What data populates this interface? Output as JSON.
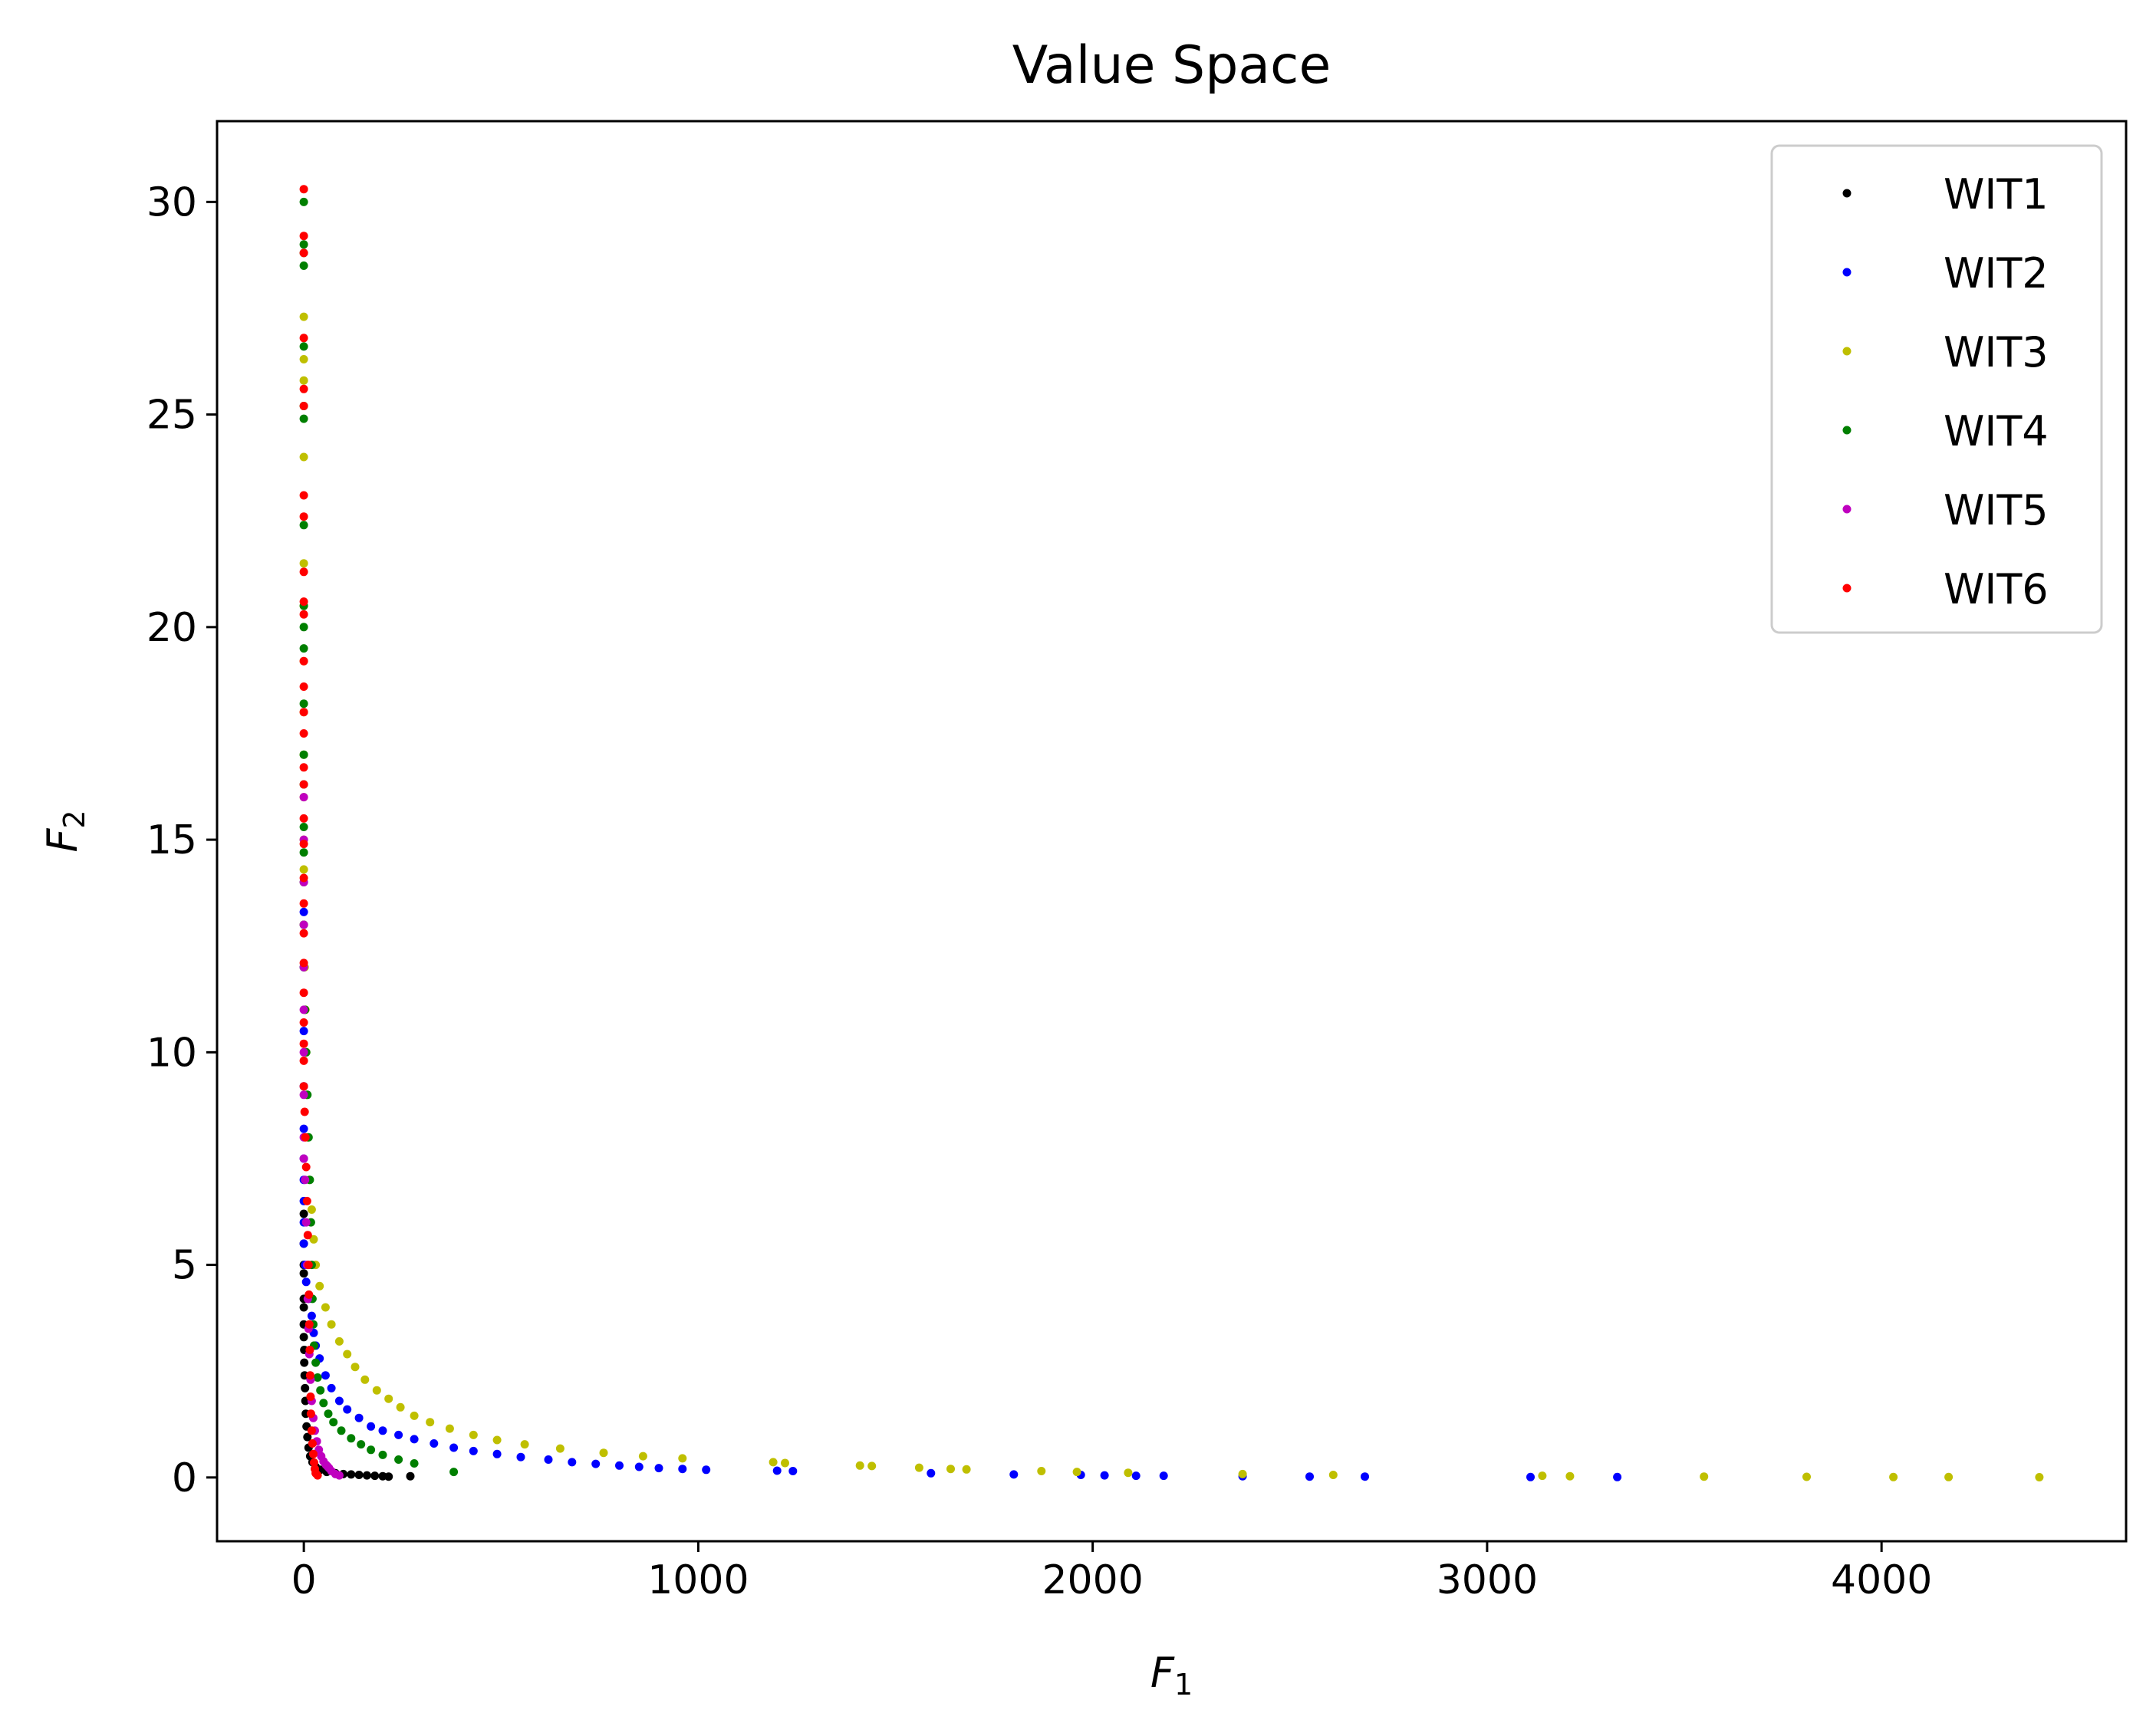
{
  "chart_data": {
    "type": "scatter",
    "title": "Value Space",
    "xlabel": {
      "symbol": "F",
      "subscript": "1"
    },
    "ylabel": {
      "symbol": "F",
      "subscript": "2"
    },
    "xlim": [
      -220,
      4620
    ],
    "ylim": [
      -1.5,
      31.9
    ],
    "x_ticks": [
      0,
      1000,
      2000,
      3000,
      4000
    ],
    "y_ticks": [
      0,
      5,
      10,
      15,
      20,
      25,
      30
    ],
    "grid": false,
    "legend_position": "top-right",
    "series": [
      {
        "name": "WIT1",
        "color": "#000000",
        "points": [
          [
            0,
            6.2
          ],
          [
            0,
            5.5
          ],
          [
            0,
            5
          ],
          [
            0,
            4.8
          ],
          [
            0,
            4.2
          ],
          [
            0,
            4
          ],
          [
            0,
            3.6
          ],
          [
            0,
            3.3
          ],
          [
            1,
            3
          ],
          [
            1,
            2.7
          ],
          [
            2,
            2.4
          ],
          [
            3,
            2.1
          ],
          [
            4,
            1.8
          ],
          [
            5,
            1.5
          ],
          [
            7,
            1.2
          ],
          [
            9,
            0.95
          ],
          [
            12,
            0.7
          ],
          [
            16,
            0.5
          ],
          [
            22,
            0.36
          ],
          [
            30,
            0.25
          ],
          [
            42,
            0.18
          ],
          [
            58,
            0.13
          ],
          [
            80,
            0.1
          ],
          [
            100,
            0.08
          ],
          [
            120,
            0.07
          ],
          [
            140,
            0.06
          ],
          [
            160,
            0.05
          ],
          [
            180,
            0.04
          ],
          [
            200,
            0.03
          ],
          [
            215,
            0.02
          ],
          [
            270,
            0.03
          ]
        ]
      },
      {
        "name": "WIT2",
        "color": "#0000ff",
        "points": [
          [
            0,
            13.3
          ],
          [
            0,
            12
          ],
          [
            0,
            10.5
          ],
          [
            0,
            9.2
          ],
          [
            0,
            8.2
          ],
          [
            0,
            7.5
          ],
          [
            0,
            7
          ],
          [
            0,
            6.5
          ],
          [
            0,
            6
          ],
          [
            0,
            5.5
          ],
          [
            3,
            5
          ],
          [
            6,
            4.6
          ],
          [
            12,
            4.2
          ],
          [
            20,
            3.8
          ],
          [
            25,
            3.4
          ],
          [
            30,
            3.1
          ],
          [
            40,
            2.8
          ],
          [
            55,
            2.4
          ],
          [
            70,
            2.1
          ],
          [
            90,
            1.8
          ],
          [
            110,
            1.6
          ],
          [
            140,
            1.4
          ],
          [
            170,
            1.2
          ],
          [
            200,
            1.1
          ],
          [
            240,
            1
          ],
          [
            280,
            0.9
          ],
          [
            330,
            0.8
          ],
          [
            380,
            0.7
          ],
          [
            430,
            0.62
          ],
          [
            490,
            0.55
          ],
          [
            550,
            0.48
          ],
          [
            620,
            0.42
          ],
          [
            680,
            0.36
          ],
          [
            740,
            0.32
          ],
          [
            800,
            0.28
          ],
          [
            850,
            0.25
          ],
          [
            900,
            0.22
          ],
          [
            960,
            0.2
          ],
          [
            1020,
            0.18
          ],
          [
            1200,
            0.16
          ],
          [
            1240,
            0.15
          ],
          [
            1590,
            0.1
          ],
          [
            1800,
            0.07
          ],
          [
            1970,
            0.06
          ],
          [
            2030,
            0.05
          ],
          [
            2110,
            0.04
          ],
          [
            2180,
            0.04
          ],
          [
            2380,
            0.03
          ],
          [
            2550,
            0.02
          ],
          [
            2690,
            0.02
          ],
          [
            3110,
            0.01
          ],
          [
            3330,
            0.01
          ]
        ]
      },
      {
        "name": "WIT3",
        "color": "#bfbf00",
        "points": [
          [
            0,
            27.3
          ],
          [
            0,
            26.3
          ],
          [
            0,
            25.8
          ],
          [
            0,
            24
          ],
          [
            0,
            21.5
          ],
          [
            0,
            20.5
          ],
          [
            0,
            19.2
          ],
          [
            0,
            18
          ],
          [
            0,
            17
          ],
          [
            0,
            16
          ],
          [
            0,
            15
          ],
          [
            0,
            14.3
          ],
          [
            0,
            13
          ],
          [
            2,
            12
          ],
          [
            4,
            11
          ],
          [
            6,
            10
          ],
          [
            8,
            9
          ],
          [
            10,
            8
          ],
          [
            14,
            7
          ],
          [
            20,
            6.3
          ],
          [
            25,
            5.6
          ],
          [
            30,
            5
          ],
          [
            40,
            4.5
          ],
          [
            55,
            4
          ],
          [
            70,
            3.6
          ],
          [
            90,
            3.2
          ],
          [
            110,
            2.9
          ],
          [
            130,
            2.6
          ],
          [
            155,
            2.3
          ],
          [
            185,
            2.05
          ],
          [
            215,
            1.85
          ],
          [
            245,
            1.65
          ],
          [
            280,
            1.45
          ],
          [
            320,
            1.3
          ],
          [
            370,
            1.15
          ],
          [
            430,
            1
          ],
          [
            490,
            0.88
          ],
          [
            560,
            0.78
          ],
          [
            650,
            0.68
          ],
          [
            760,
            0.58
          ],
          [
            860,
            0.5
          ],
          [
            960,
            0.45
          ],
          [
            1190,
            0.36
          ],
          [
            1220,
            0.34
          ],
          [
            1410,
            0.28
          ],
          [
            1440,
            0.27
          ],
          [
            1560,
            0.23
          ],
          [
            1640,
            0.2
          ],
          [
            1680,
            0.19
          ],
          [
            1870,
            0.15
          ],
          [
            1960,
            0.13
          ],
          [
            2090,
            0.11
          ],
          [
            2380,
            0.08
          ],
          [
            2610,
            0.06
          ],
          [
            3140,
            0.04
          ],
          [
            3210,
            0.03
          ],
          [
            3550,
            0.02
          ],
          [
            3810,
            0.015
          ],
          [
            4030,
            0.01
          ],
          [
            4170,
            0.01
          ],
          [
            4400,
            0.005
          ]
        ]
      },
      {
        "name": "WIT4",
        "color": "#007f00",
        "points": [
          [
            0,
            30
          ],
          [
            0,
            29
          ],
          [
            0,
            28.8
          ],
          [
            0,
            28.5
          ],
          [
            0,
            26.6
          ],
          [
            0,
            25.2
          ],
          [
            0,
            24.9
          ],
          [
            0,
            22.4
          ],
          [
            0,
            20.5
          ],
          [
            0,
            20
          ],
          [
            0,
            19.5
          ],
          [
            0,
            18.2
          ],
          [
            0,
            17
          ],
          [
            0,
            16.3
          ],
          [
            0,
            15.3
          ],
          [
            0,
            14.7
          ],
          [
            0,
            14
          ],
          [
            0,
            13
          ],
          [
            0,
            12
          ],
          [
            3,
            11
          ],
          [
            6,
            10
          ],
          [
            9,
            9
          ],
          [
            12,
            8
          ],
          [
            15,
            7
          ],
          [
            18,
            6
          ],
          [
            20,
            5
          ],
          [
            22,
            4.2
          ],
          [
            24,
            3.6
          ],
          [
            26,
            3.1
          ],
          [
            30,
            2.7
          ],
          [
            35,
            2.35
          ],
          [
            42,
            2.05
          ],
          [
            50,
            1.75
          ],
          [
            62,
            1.5
          ],
          [
            75,
            1.3
          ],
          [
            95,
            1.1
          ],
          [
            120,
            0.92
          ],
          [
            145,
            0.78
          ],
          [
            170,
            0.65
          ],
          [
            200,
            0.53
          ],
          [
            240,
            0.42
          ],
          [
            280,
            0.33
          ],
          [
            380,
            0.13
          ]
        ]
      },
      {
        "name": "WIT5",
        "color": "#bf00bf",
        "points": [
          [
            0,
            16
          ],
          [
            0,
            15
          ],
          [
            0,
            14
          ],
          [
            0,
            13
          ],
          [
            0,
            12
          ],
          [
            0,
            11
          ],
          [
            0,
            10
          ],
          [
            0,
            9
          ],
          [
            0,
            8
          ],
          [
            0,
            7.5
          ],
          [
            3,
            7
          ],
          [
            6,
            6
          ],
          [
            8,
            5
          ],
          [
            10,
            4.2
          ],
          [
            12,
            3.5
          ],
          [
            14,
            2.9
          ],
          [
            17,
            2.3
          ],
          [
            20,
            1.8
          ],
          [
            24,
            1.4
          ],
          [
            28,
            1.1
          ],
          [
            33,
            0.85
          ],
          [
            38,
            0.65
          ],
          [
            44,
            0.5
          ],
          [
            50,
            0.38
          ],
          [
            56,
            0.3
          ],
          [
            60,
            0.26
          ],
          [
            64,
            0.22
          ],
          [
            70,
            0.15
          ],
          [
            80,
            0.08
          ],
          [
            90,
            0.05
          ]
        ]
      },
      {
        "name": "WIT6",
        "color": "#ff0000",
        "points": [
          [
            0,
            30.3
          ],
          [
            0,
            29.2
          ],
          [
            0,
            28.8
          ],
          [
            0,
            26.8
          ],
          [
            0,
            25.6
          ],
          [
            0,
            25.2
          ],
          [
            0,
            23.1
          ],
          [
            0,
            22.6
          ],
          [
            0,
            21.3
          ],
          [
            0,
            20.6
          ],
          [
            0,
            20.3
          ],
          [
            0,
            19.2
          ],
          [
            0,
            18.6
          ],
          [
            0,
            18
          ],
          [
            0,
            17.5
          ],
          [
            0,
            16.7
          ],
          [
            0,
            16.3
          ],
          [
            0,
            15.5
          ],
          [
            0,
            14.9
          ],
          [
            0,
            14.1
          ],
          [
            0,
            13.5
          ],
          [
            0,
            12.8
          ],
          [
            0,
            12.1
          ],
          [
            0,
            11.4
          ],
          [
            0,
            10.7
          ],
          [
            0,
            10.2
          ],
          [
            0,
            9.8
          ],
          [
            0,
            9.2
          ],
          [
            2,
            8.6
          ],
          [
            4,
            8
          ],
          [
            6,
            7.3
          ],
          [
            8,
            6.5
          ],
          [
            10,
            5.7
          ],
          [
            12,
            5
          ],
          [
            13,
            4.3
          ],
          [
            14,
            3.6
          ],
          [
            15,
            3
          ],
          [
            16,
            2.4
          ],
          [
            17,
            1.9
          ],
          [
            18,
            1.5
          ],
          [
            20,
            1.1
          ],
          [
            22,
            0.8
          ],
          [
            24,
            0.55
          ],
          [
            26,
            0.35
          ],
          [
            28,
            0.2
          ],
          [
            30,
            0.1
          ],
          [
            35,
            0.05
          ]
        ]
      }
    ]
  }
}
